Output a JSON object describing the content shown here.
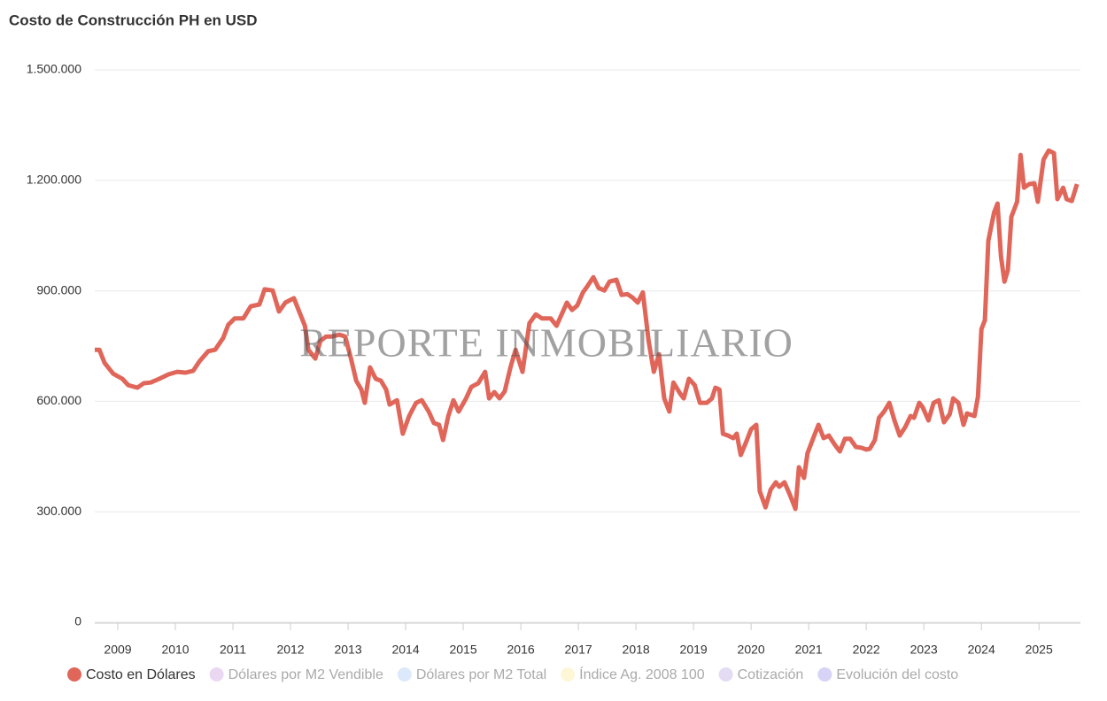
{
  "chart_data": {
    "type": "line",
    "title": "Costo de Construcción PH en USD",
    "watermark": "REPORTE INMOBILIARIO",
    "x": [
      2008.6,
      2008.68,
      2008.77,
      2008.92,
      2009.08,
      2009.18,
      2009.34,
      2009.45,
      2009.57,
      2009.72,
      2009.88,
      2010.03,
      2010.18,
      2010.31,
      2010.42,
      2010.57,
      2010.69,
      2010.83,
      2010.92,
      2011.03,
      2011.18,
      2011.31,
      2011.46,
      2011.55,
      2011.69,
      2011.8,
      2011.91,
      2012.06,
      2012.15,
      2012.25,
      2012.31,
      2012.43,
      2012.52,
      2012.62,
      2012.72,
      2012.85,
      2012.95,
      2013.05,
      2013.14,
      2013.23,
      2013.29,
      2013.38,
      2013.48,
      2013.57,
      2013.66,
      2013.72,
      2013.85,
      2013.95,
      2014.06,
      2014.18,
      2014.28,
      2014.4,
      2014.49,
      2014.58,
      2014.65,
      2014.74,
      2014.83,
      2014.92,
      2015.05,
      2015.14,
      2015.26,
      2015.38,
      2015.45,
      2015.54,
      2015.63,
      2015.72,
      2015.82,
      2015.91,
      2016.03,
      2016.15,
      2016.26,
      2016.37,
      2016.52,
      2016.62,
      2016.71,
      2016.8,
      2016.89,
      2016.98,
      2017.08,
      2017.15,
      2017.26,
      2017.35,
      2017.45,
      2017.54,
      2017.66,
      2017.75,
      2017.85,
      2017.94,
      2018.03,
      2018.12,
      2018.22,
      2018.31,
      2018.4,
      2018.49,
      2018.58,
      2018.65,
      2018.77,
      2018.83,
      2018.92,
      2019.02,
      2019.11,
      2019.23,
      2019.32,
      2019.38,
      2019.45,
      2019.51,
      2019.6,
      2019.69,
      2019.75,
      2019.82,
      2019.91,
      2020.0,
      2020.09,
      2020.15,
      2020.25,
      2020.34,
      2020.43,
      2020.49,
      2020.58,
      2020.68,
      2020.77,
      2020.83,
      2020.92,
      2020.98,
      2021.08,
      2021.17,
      2021.26,
      2021.35,
      2021.45,
      2021.54,
      2021.63,
      2021.72,
      2021.82,
      2021.91,
      2022.0,
      2022.06,
      2022.15,
      2022.22,
      2022.31,
      2022.4,
      2022.49,
      2022.58,
      2022.68,
      2022.77,
      2022.83,
      2022.92,
      2022.98,
      2023.08,
      2023.17,
      2023.26,
      2023.35,
      2023.45,
      2023.51,
      2023.6,
      2023.69,
      2023.75,
      2023.88,
      2023.94,
      2024.0,
      2024.06,
      2024.12,
      2024.22,
      2024.28,
      2024.34,
      2024.4,
      2024.46,
      2024.52,
      2024.62,
      2024.68,
      2024.74,
      2024.83,
      2024.92,
      2024.98,
      2025.08,
      2025.17,
      2025.26,
      2025.32,
      2025.42,
      2025.48,
      2025.57,
      2025.66
    ],
    "series": [
      {
        "name": "Costo en Dólares",
        "color": "#e0665a",
        "values": [
          740000,
          740000,
          704000,
          675000,
          661000,
          644000,
          637000,
          649000,
          651000,
          661000,
          673000,
          680000,
          678000,
          683000,
          709000,
          736000,
          740000,
          772000,
          808000,
          825000,
          825000,
          858000,
          863000,
          904000,
          901000,
          844000,
          868000,
          880000,
          844000,
          805000,
          740000,
          716000,
          764000,
          776000,
          776000,
          781000,
          776000,
          716000,
          656000,
          632000,
          596000,
          692000,
          661000,
          656000,
          632000,
          591000,
          603000,
          512000,
          560000,
          596000,
          603000,
          572000,
          541000,
          536000,
          495000,
          560000,
          603000,
          572000,
          608000,
          639000,
          649000,
          680000,
          608000,
          625000,
          608000,
          627000,
          692000,
          740000,
          680000,
          812000,
          836000,
          825000,
          825000,
          805000,
          836000,
          868000,
          848000,
          860000,
          896000,
          911000,
          937000,
          908000,
          901000,
          925000,
          930000,
          889000,
          891000,
          882000,
          868000,
          896000,
          764000,
          680000,
          728000,
          608000,
          572000,
          651000,
          620000,
          608000,
          661000,
          644000,
          596000,
          596000,
          608000,
          637000,
          632000,
          512000,
          507000,
          500000,
          512000,
          454000,
          488000,
          524000,
          536000,
          356000,
          312000,
          360000,
          380000,
          368000,
          380000,
          344000,
          308000,
          421000,
          392000,
          459000,
          500000,
          536000,
          500000,
          507000,
          483000,
          464000,
          498000,
          498000,
          476000,
          474000,
          469000,
          471000,
          495000,
          555000,
          572000,
          596000,
          548000,
          507000,
          531000,
          560000,
          555000,
          596000,
          584000,
          548000,
          596000,
          603000,
          543000,
          565000,
          608000,
          596000,
          536000,
          567000,
          560000,
          613000,
          796000,
          820000,
          1036000,
          1113000,
          1137000,
          993000,
          925000,
          957000,
          1101000,
          1142000,
          1269000,
          1180000,
          1190000,
          1192000,
          1142000,
          1257000,
          1281000,
          1274000,
          1149000,
          1180000,
          1149000,
          1144000,
          1190000
        ]
      }
    ],
    "inactive_series": [
      {
        "name": "Dólares por M2 Vendible",
        "color": "#ead8f2"
      },
      {
        "name": "Dólares por M2 Total",
        "color": "#dce9fb"
      },
      {
        "name": "Índice Ag. 2008 100",
        "color": "#fdf7d8"
      },
      {
        "name": "Cotización",
        "color": "#e3dcf3"
      },
      {
        "name": "Evolución del costo",
        "color": "#d6d3f6"
      }
    ],
    "xlim": [
      2008.6,
      2025.72
    ],
    "xticks": [
      2009,
      2010,
      2011,
      2012,
      2013,
      2014,
      2015,
      2016,
      2017,
      2018,
      2019,
      2020,
      2021,
      2022,
      2023,
      2024,
      2025
    ],
    "ylim": [
      0,
      1500000
    ],
    "yticks": [
      0,
      {
        "value": 300000,
        "label": "300.000"
      },
      {
        "value": 600000,
        "label": "600.000"
      },
      {
        "value": 900000,
        "label": "900.000"
      },
      {
        "value": 1200000,
        "label": "1.200.000"
      },
      {
        "value": 1500000,
        "label": "1.500.000"
      }
    ],
    "grid": true
  }
}
